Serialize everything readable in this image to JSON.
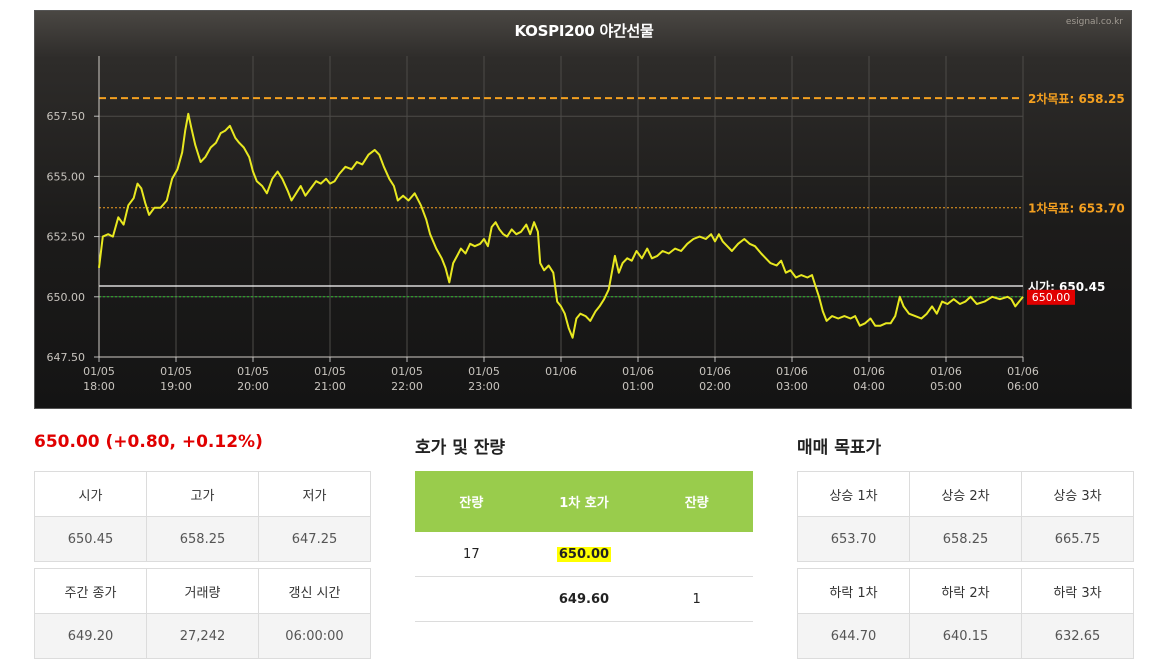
{
  "chart": {
    "title": "KOSPI200 야간선물",
    "watermark": "esignal.co.kr"
  },
  "colors": {
    "price_line": "#e8e820",
    "target_line": "#f4a020",
    "open_line": "#ffffff",
    "prev_close_line": "#2bbf2b",
    "current_badge": "#e00000",
    "up": "#e00000",
    "down": "#0000cc",
    "quote_header": "#99cc4c",
    "highlight": "#ffff00"
  },
  "chart_data": {
    "type": "line",
    "title": "KOSPI200 야간선물",
    "x_ticks": [
      {
        "date": "01/05",
        "time": "18:00",
        "hour": 0
      },
      {
        "date": "01/05",
        "time": "19:00",
        "hour": 1
      },
      {
        "date": "01/05",
        "time": "20:00",
        "hour": 2
      },
      {
        "date": "01/05",
        "time": "21:00",
        "hour": 3
      },
      {
        "date": "01/05",
        "time": "22:00",
        "hour": 4
      },
      {
        "date": "01/05",
        "time": "23:00",
        "hour": 5
      },
      {
        "date": "01/06",
        "time": "",
        "hour": 6
      },
      {
        "date": "01/06",
        "time": "01:00",
        "hour": 7
      },
      {
        "date": "01/06",
        "time": "02:00",
        "hour": 8
      },
      {
        "date": "01/06",
        "time": "03:00",
        "hour": 9
      },
      {
        "date": "01/06",
        "time": "04:00",
        "hour": 10
      },
      {
        "date": "01/06",
        "time": "05:00",
        "hour": 11
      },
      {
        "date": "01/06",
        "time": "06:00",
        "hour": 12
      }
    ],
    "y_ticks": [
      "647.50",
      "650.00",
      "652.50",
      "655.00",
      "657.50"
    ],
    "ylim": [
      647.5,
      660.0
    ],
    "xlim_hours": [
      0,
      12
    ],
    "grid": true,
    "series": [
      {
        "points": [
          [
            0.0,
            651.2
          ],
          [
            0.05,
            652.5
          ],
          [
            0.12,
            652.6
          ],
          [
            0.18,
            652.5
          ],
          [
            0.25,
            653.3
          ],
          [
            0.32,
            653.0
          ],
          [
            0.38,
            653.8
          ],
          [
            0.45,
            654.1
          ],
          [
            0.5,
            654.7
          ],
          [
            0.55,
            654.5
          ],
          [
            0.6,
            653.9
          ],
          [
            0.65,
            653.4
          ],
          [
            0.72,
            653.7
          ],
          [
            0.8,
            653.7
          ],
          [
            0.88,
            654.0
          ],
          [
            0.95,
            654.9
          ],
          [
            1.02,
            655.3
          ],
          [
            1.08,
            656.0
          ],
          [
            1.12,
            656.9
          ],
          [
            1.16,
            657.6
          ],
          [
            1.2,
            657.0
          ],
          [
            1.25,
            656.3
          ],
          [
            1.32,
            655.6
          ],
          [
            1.38,
            655.8
          ],
          [
            1.45,
            656.2
          ],
          [
            1.52,
            656.4
          ],
          [
            1.58,
            656.8
          ],
          [
            1.64,
            656.9
          ],
          [
            1.7,
            657.1
          ],
          [
            1.77,
            656.6
          ],
          [
            1.82,
            656.4
          ],
          [
            1.88,
            656.2
          ],
          [
            1.95,
            655.8
          ],
          [
            2.0,
            655.2
          ],
          [
            2.05,
            654.8
          ],
          [
            2.12,
            654.6
          ],
          [
            2.18,
            654.3
          ],
          [
            2.25,
            654.9
          ],
          [
            2.32,
            655.2
          ],
          [
            2.38,
            654.9
          ],
          [
            2.45,
            654.4
          ],
          [
            2.5,
            654.0
          ],
          [
            2.56,
            654.3
          ],
          [
            2.62,
            654.6
          ],
          [
            2.68,
            654.2
          ],
          [
            2.75,
            654.5
          ],
          [
            2.82,
            654.8
          ],
          [
            2.88,
            654.7
          ],
          [
            2.95,
            654.9
          ],
          [
            3.0,
            654.7
          ],
          [
            3.06,
            654.8
          ],
          [
            3.12,
            655.1
          ],
          [
            3.2,
            655.4
          ],
          [
            3.28,
            655.3
          ],
          [
            3.35,
            655.6
          ],
          [
            3.42,
            655.5
          ],
          [
            3.5,
            655.9
          ],
          [
            3.58,
            656.1
          ],
          [
            3.64,
            655.9
          ],
          [
            3.7,
            655.4
          ],
          [
            3.77,
            654.9
          ],
          [
            3.83,
            654.6
          ],
          [
            3.88,
            654.0
          ],
          [
            3.95,
            654.2
          ],
          [
            4.02,
            654.0
          ],
          [
            4.1,
            654.3
          ],
          [
            4.18,
            653.8
          ],
          [
            4.25,
            653.2
          ],
          [
            4.3,
            652.6
          ],
          [
            4.38,
            652.0
          ],
          [
            4.45,
            651.6
          ],
          [
            4.5,
            651.2
          ],
          [
            4.55,
            650.6
          ],
          [
            4.6,
            651.4
          ],
          [
            4.65,
            651.7
          ],
          [
            4.7,
            652.0
          ],
          [
            4.76,
            651.8
          ],
          [
            4.82,
            652.2
          ],
          [
            4.88,
            652.1
          ],
          [
            4.95,
            652.2
          ],
          [
            5.0,
            652.4
          ],
          [
            5.05,
            652.1
          ],
          [
            5.1,
            652.9
          ],
          [
            5.15,
            653.1
          ],
          [
            5.2,
            652.8
          ],
          [
            5.25,
            652.6
          ],
          [
            5.3,
            652.5
          ],
          [
            5.36,
            652.8
          ],
          [
            5.42,
            652.6
          ],
          [
            5.48,
            652.7
          ],
          [
            5.55,
            653.0
          ],
          [
            5.6,
            652.6
          ],
          [
            5.65,
            653.1
          ],
          [
            5.7,
            652.7
          ],
          [
            5.73,
            651.4
          ],
          [
            5.78,
            651.1
          ],
          [
            5.84,
            651.3
          ],
          [
            5.9,
            651.0
          ],
          [
            5.95,
            649.8
          ],
          [
            6.0,
            649.6
          ],
          [
            6.05,
            649.3
          ],
          [
            6.1,
            648.7
          ],
          [
            6.15,
            648.3
          ],
          [
            6.2,
            649.1
          ],
          [
            6.25,
            649.3
          ],
          [
            6.32,
            649.2
          ],
          [
            6.38,
            649.0
          ],
          [
            6.45,
            649.4
          ],
          [
            6.5,
            649.6
          ],
          [
            6.56,
            649.9
          ],
          [
            6.62,
            650.3
          ],
          [
            6.66,
            651.0
          ],
          [
            6.7,
            651.7
          ],
          [
            6.75,
            651.0
          ],
          [
            6.8,
            651.4
          ],
          [
            6.86,
            651.6
          ],
          [
            6.92,
            651.5
          ],
          [
            6.98,
            651.9
          ],
          [
            7.05,
            651.6
          ],
          [
            7.12,
            652.0
          ],
          [
            7.18,
            651.6
          ],
          [
            7.25,
            651.7
          ],
          [
            7.32,
            651.9
          ],
          [
            7.4,
            651.8
          ],
          [
            7.48,
            652.0
          ],
          [
            7.56,
            651.9
          ],
          [
            7.64,
            652.2
          ],
          [
            7.72,
            652.4
          ],
          [
            7.8,
            652.5
          ],
          [
            7.88,
            652.4
          ],
          [
            7.95,
            652.6
          ],
          [
            8.0,
            652.3
          ],
          [
            8.05,
            652.6
          ],
          [
            8.1,
            652.3
          ],
          [
            8.16,
            652.1
          ],
          [
            8.22,
            651.9
          ],
          [
            8.3,
            652.2
          ],
          [
            8.38,
            652.4
          ],
          [
            8.45,
            652.2
          ],
          [
            8.52,
            652.1
          ],
          [
            8.6,
            651.8
          ],
          [
            8.66,
            651.6
          ],
          [
            8.72,
            651.4
          ],
          [
            8.8,
            651.3
          ],
          [
            8.86,
            651.5
          ],
          [
            8.92,
            651.0
          ],
          [
            8.98,
            651.1
          ],
          [
            9.05,
            650.8
          ],
          [
            9.12,
            650.9
          ],
          [
            9.2,
            650.8
          ],
          [
            9.26,
            650.9
          ],
          [
            9.3,
            650.5
          ],
          [
            9.35,
            650.0
          ],
          [
            9.4,
            649.4
          ],
          [
            9.45,
            649.0
          ],
          [
            9.52,
            649.2
          ],
          [
            9.6,
            649.1
          ],
          [
            9.68,
            649.2
          ],
          [
            9.76,
            649.1
          ],
          [
            9.82,
            649.2
          ],
          [
            9.88,
            648.8
          ],
          [
            9.95,
            648.9
          ],
          [
            10.02,
            649.1
          ],
          [
            10.08,
            648.8
          ],
          [
            10.15,
            648.8
          ],
          [
            10.22,
            648.9
          ],
          [
            10.28,
            648.9
          ],
          [
            10.34,
            649.2
          ],
          [
            10.4,
            650.0
          ],
          [
            10.45,
            649.6
          ],
          [
            10.52,
            649.3
          ],
          [
            10.6,
            649.2
          ],
          [
            10.68,
            649.1
          ],
          [
            10.75,
            649.3
          ],
          [
            10.82,
            649.6
          ],
          [
            10.88,
            649.3
          ],
          [
            10.95,
            649.8
          ],
          [
            11.02,
            649.7
          ],
          [
            11.1,
            649.9
          ],
          [
            11.18,
            649.7
          ],
          [
            11.25,
            649.8
          ],
          [
            11.32,
            650.0
          ],
          [
            11.4,
            649.7
          ],
          [
            11.5,
            649.8
          ],
          [
            11.6,
            650.0
          ],
          [
            11.7,
            649.9
          ],
          [
            11.8,
            650.0
          ],
          [
            11.85,
            649.9
          ],
          [
            11.9,
            649.6
          ],
          [
            12.0,
            650.0
          ]
        ]
      }
    ],
    "reference_lines": [
      {
        "label": "2차목표: 658.25",
        "value": 658.25,
        "style": "dashed",
        "color": "#f4a020"
      },
      {
        "label": "1차목표: 653.70",
        "value": 653.7,
        "style": "dotted",
        "color": "#f4a020"
      },
      {
        "label": "시가: 650.45",
        "value": 650.45,
        "style": "solid",
        "color": "#ffffff"
      },
      {
        "label": "",
        "value": 650.0,
        "style": "dotted",
        "color": "#2bbf2b"
      }
    ],
    "current_badge": "650.00"
  },
  "summary": {
    "price_line": "650.00 (+0.80, +0.12%)"
  },
  "info_table_1": {
    "headers": [
      "시가",
      "고가",
      "저가"
    ],
    "values": [
      "650.45",
      "658.25",
      "647.25"
    ]
  },
  "info_table_2": {
    "headers": [
      "주간 종가",
      "거래량",
      "갱신 시간"
    ],
    "values": [
      "649.20",
      "27,242",
      "06:00:00"
    ]
  },
  "quote": {
    "title": "호가 및 잔량",
    "headers": [
      "잔량",
      "1차 호가",
      "잔량"
    ],
    "rows": [
      {
        "left": "17",
        "price": "650.00",
        "right": ""
      },
      {
        "left": "",
        "price": "649.60",
        "right": "1"
      }
    ]
  },
  "targets": {
    "title": "매매 목표가",
    "up_headers": [
      "상승 1차",
      "상승 2차",
      "상승 3차"
    ],
    "up_values": [
      "653.70",
      "658.25",
      "665.75"
    ],
    "down_headers": [
      "하락 1차",
      "하락 2차",
      "하락 3차"
    ],
    "down_values": [
      "644.70",
      "640.15",
      "632.65"
    ]
  }
}
